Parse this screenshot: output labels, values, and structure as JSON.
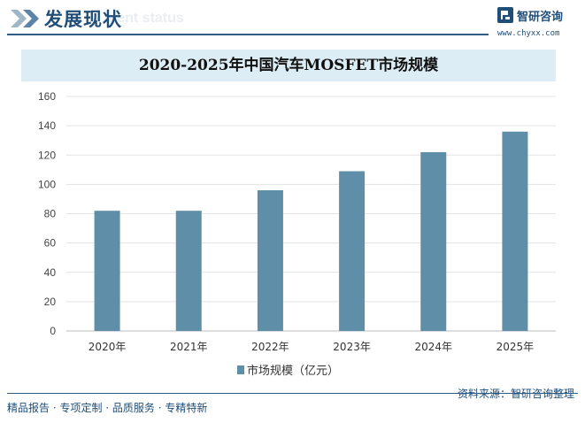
{
  "header": {
    "title": "发展现状",
    "ghost_text": "ment status"
  },
  "logo": {
    "name": "智研咨询",
    "url": "www.chyxx.com"
  },
  "chart_data": {
    "type": "bar",
    "title": "2020-2025年中国汽车MOSFET市场规模",
    "categories": [
      "2020年",
      "2021年",
      "2022年",
      "2023年",
      "2024年",
      "2025年"
    ],
    "series": [
      {
        "name": "市场规模（亿元）",
        "values": [
          82,
          82,
          96,
          109,
          122,
          136
        ],
        "color": "#5f8fa8"
      }
    ],
    "yticks": [
      0,
      20,
      40,
      60,
      80,
      100,
      120,
      140,
      160
    ],
    "ylim": [
      0,
      160
    ],
    "xlabel": "",
    "ylabel": "",
    "grid": true,
    "legend": "bottom"
  },
  "footer": {
    "left": "精品报告 · 专项定制 · 品质服务 · 专精特新",
    "right": "资料来源：智研咨询整理"
  }
}
